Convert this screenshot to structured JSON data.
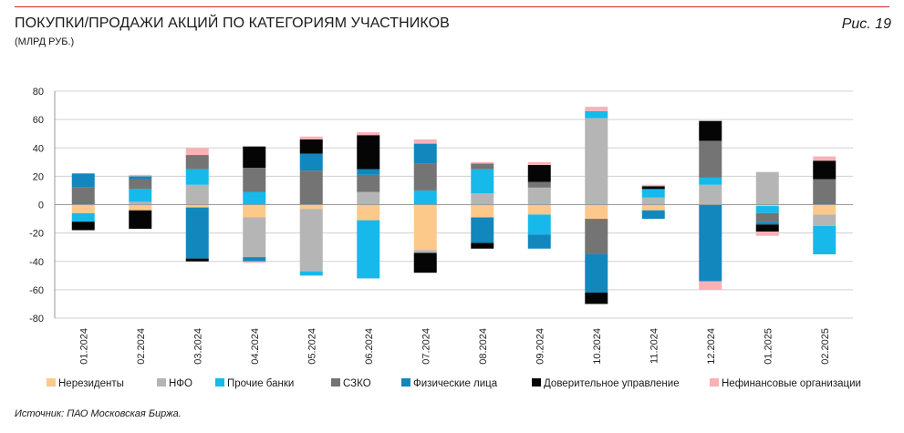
{
  "header": {
    "title": "ПОКУПКИ/ПРОДАЖИ АКЦИЙ ПО КАТЕГОРИЯМ УЧАСТНИКОВ",
    "subtitle": "(МЛРД РУБ.)",
    "figure_label": "Рис. 19"
  },
  "footer": {
    "source": "Источник: ПАО Московская Биржа."
  },
  "colors": {
    "accent_rule": "#d9252b",
    "grid": "#d0d0d0"
  },
  "chart_data": {
    "type": "bar",
    "stacked": true,
    "title": "ПОКУПКИ/ПРОДАЖИ АКЦИЙ ПО КАТЕГОРИЯМ УЧАСТНИКОВ",
    "ylabel": "(МЛРД РУБ.)",
    "xlabel": "",
    "ylim": [
      -80,
      80
    ],
    "yticks": [
      80,
      60,
      40,
      20,
      0,
      -20,
      -40,
      -60,
      -80
    ],
    "grid": true,
    "legend_position": "bottom",
    "categories": [
      "01.2024",
      "02.2024",
      "03.2024",
      "04.2024",
      "05.2024",
      "06.2024",
      "07.2024",
      "08.2024",
      "09.2024",
      "10.2024",
      "11.2024",
      "12.2024",
      "01.2025",
      "02.2025"
    ],
    "series": [
      {
        "name": "Нерезиденты",
        "color": "#fcc98a",
        "values": [
          -6,
          -4,
          -2,
          -9,
          -3,
          -11,
          -32,
          -9,
          -7,
          -10,
          -4,
          0,
          -1,
          -7
        ]
      },
      {
        "name": "НФО",
        "color": "#b5b5b5",
        "values": [
          0,
          2,
          14,
          -28,
          -44,
          9,
          -2,
          8,
          12,
          61,
          5,
          14,
          23,
          -8
        ]
      },
      {
        "name": "Прочие банки",
        "color": "#16b9ea",
        "values": [
          -6,
          9,
          11,
          9,
          -3,
          -41,
          10,
          17,
          -14,
          5,
          6,
          5,
          -5,
          -20
        ]
      },
      {
        "name": "СЗКО",
        "color": "#747474",
        "values": [
          12,
          7,
          10,
          17,
          24,
          12,
          19,
          4,
          4,
          -25,
          0,
          26,
          -6,
          18
        ]
      },
      {
        "name": "Физические лица",
        "color": "#1287bd",
        "values": [
          10,
          2,
          -36,
          -3,
          12,
          4,
          14,
          -18,
          -10,
          -27,
          -6,
          -54,
          -2,
          0
        ]
      },
      {
        "name": "Доверительное управление",
        "color": "#050505",
        "values": [
          -6,
          -13,
          -2,
          15,
          10,
          24,
          -14,
          -4,
          12,
          -8,
          2,
          14,
          -5,
          13
        ]
      },
      {
        "name": "Нефинансовые организации",
        "color": "#f9b1b6",
        "values": [
          0,
          1,
          5,
          -1,
          2,
          2,
          3,
          1,
          2,
          3,
          1,
          -6,
          -3,
          3
        ]
      }
    ]
  }
}
